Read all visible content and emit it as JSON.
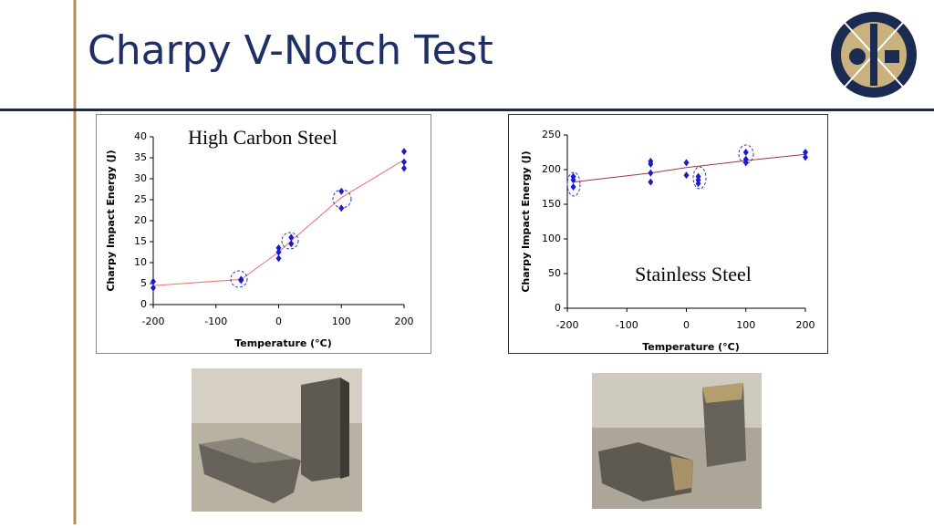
{
  "header": {
    "title": "Charpy V-Notch Test"
  },
  "chart_data": [
    {
      "type": "scatter",
      "title": "High Carbon Steel",
      "xlabel": "Temperature (°C)",
      "ylabel": "Charpy Impact Energy (J)",
      "xlim": [
        -200,
        200
      ],
      "xticks": [
        -200,
        -100,
        0,
        100,
        200
      ],
      "ylim": [
        0,
        40
      ],
      "yticks": [
        0,
        5,
        10,
        15,
        20,
        25,
        30,
        35,
        40
      ],
      "grid": false,
      "series": [
        {
          "mark": "diamond",
          "color": "#1a1acc",
          "x": [
            -200,
            -200,
            -60,
            -60,
            0,
            0,
            0,
            20,
            20,
            100,
            100,
            200,
            200,
            200
          ],
          "values": [
            5.5,
            4,
            6,
            5.8,
            13.5,
            12.5,
            11,
            16,
            14.5,
            27,
            23,
            36.5,
            34,
            32.5
          ]
        },
        {
          "mark": "line",
          "color": "#f07070",
          "x": [
            -200,
            -60,
            0,
            20,
            100,
            200
          ],
          "values": [
            4.5,
            6,
            12.5,
            15.2,
            25.5,
            34.5
          ]
        }
      ]
    },
    {
      "type": "scatter",
      "title": "Stainless Steel",
      "xlabel": "Temperature (°C)",
      "ylabel": "Charpy Impact Energy (J)",
      "xlim": [
        -200,
        200
      ],
      "xticks": [
        -200,
        -100,
        0,
        100,
        200
      ],
      "ylim": [
        0,
        250
      ],
      "yticks": [
        0,
        50,
        100,
        150,
        200,
        250
      ],
      "grid": false,
      "series": [
        {
          "mark": "diamond",
          "color": "#1a1acc",
          "x": [
            -190,
            -190,
            -190,
            -60,
            -60,
            -60,
            -60,
            0,
            0,
            20,
            20,
            20,
            100,
            100,
            100,
            200,
            200
          ],
          "values": [
            190,
            185,
            175,
            212,
            208,
            195,
            182,
            210,
            192,
            190,
            185,
            180,
            225,
            215,
            210,
            225,
            218
          ]
        },
        {
          "mark": "line",
          "color": "#9b3b3b",
          "x": [
            -190,
            -60,
            0,
            20,
            100,
            200
          ],
          "values": [
            182,
            195,
            203,
            205,
            213,
            222
          ]
        }
      ]
    }
  ]
}
